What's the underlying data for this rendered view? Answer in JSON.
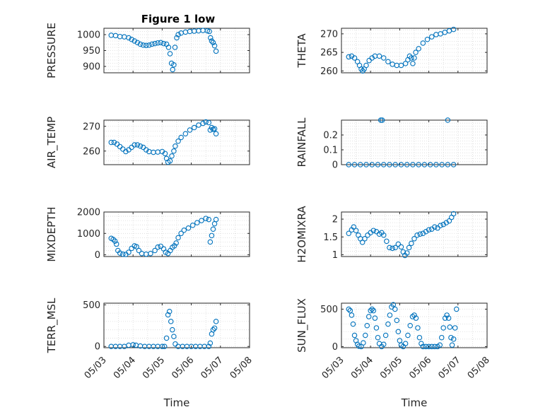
{
  "figure": {
    "title": "Figure 1 low",
    "marker_color": "#0072BD",
    "axis_color": "#262626",
    "grid_color": "#d9d9d9"
  },
  "chart_data": [
    {
      "type": "scatter",
      "ylabel": "PRESSURE",
      "xlim": [
        0,
        5
      ],
      "ylim": [
        880,
        1020
      ],
      "yticks": [
        900,
        950,
        1000
      ],
      "ytick_labels": [
        "900",
        "950",
        "1000"
      ],
      "xticks": [
        0,
        1,
        2,
        3,
        4,
        5
      ],
      "xtick_labels": [],
      "grid": true,
      "points": [
        [
          0.25,
          998
        ],
        [
          0.4,
          997
        ],
        [
          0.55,
          994
        ],
        [
          0.7,
          993
        ],
        [
          0.85,
          990
        ],
        [
          0.95,
          985
        ],
        [
          1.05,
          980
        ],
        [
          1.15,
          975
        ],
        [
          1.25,
          970
        ],
        [
          1.35,
          967
        ],
        [
          1.45,
          966
        ],
        [
          1.55,
          967
        ],
        [
          1.65,
          970
        ],
        [
          1.75,
          972
        ],
        [
          1.85,
          974
        ],
        [
          1.95,
          975
        ],
        [
          2.05,
          972
        ],
        [
          2.15,
          970
        ],
        [
          2.22,
          960
        ],
        [
          2.27,
          940
        ],
        [
          2.32,
          910
        ],
        [
          2.36,
          890
        ],
        [
          2.4,
          905
        ],
        [
          2.44,
          960
        ],
        [
          2.5,
          990
        ],
        [
          2.55,
          1000
        ],
        [
          2.65,
          1005
        ],
        [
          2.8,
          1008
        ],
        [
          2.95,
          1010
        ],
        [
          3.1,
          1011
        ],
        [
          3.25,
          1012
        ],
        [
          3.4,
          1013
        ],
        [
          3.55,
          1012
        ],
        [
          3.62,
          1010
        ],
        [
          3.66,
          990
        ],
        [
          3.7,
          980
        ],
        [
          3.75,
          975
        ],
        [
          3.8,
          965
        ],
        [
          3.85,
          948
        ]
      ]
    },
    {
      "type": "scatter",
      "ylabel": "THETA",
      "xlim": [
        0,
        5
      ],
      "ylim": [
        259.5,
        271.5
      ],
      "yticks": [
        260,
        265,
        270
      ],
      "ytick_labels": [
        "260",
        "265",
        "270"
      ],
      "xticks": [
        0,
        1,
        2,
        3,
        4,
        5
      ],
      "xtick_labels": [],
      "grid": true,
      "points": [
        [
          0.25,
          263.8
        ],
        [
          0.35,
          264
        ],
        [
          0.45,
          263.5
        ],
        [
          0.55,
          262.5
        ],
        [
          0.62,
          261.5
        ],
        [
          0.68,
          260.5
        ],
        [
          0.73,
          260
        ],
        [
          0.78,
          260.5
        ],
        [
          0.85,
          261.5
        ],
        [
          0.95,
          262.8
        ],
        [
          1.05,
          263.5
        ],
        [
          1.15,
          264
        ],
        [
          1.3,
          264
        ],
        [
          1.45,
          263.5
        ],
        [
          1.6,
          262.5
        ],
        [
          1.75,
          261.8
        ],
        [
          1.9,
          261.5
        ],
        [
          2.05,
          261.5
        ],
        [
          2.2,
          262
        ],
        [
          2.28,
          263
        ],
        [
          2.34,
          264
        ],
        [
          2.4,
          263.5
        ],
        [
          2.45,
          262
        ],
        [
          2.5,
          263.5
        ],
        [
          2.55,
          265
        ],
        [
          2.65,
          266
        ],
        [
          2.8,
          267.5
        ],
        [
          2.95,
          268.5
        ],
        [
          3.1,
          269.2
        ],
        [
          3.25,
          269.8
        ],
        [
          3.4,
          270
        ],
        [
          3.55,
          270.4
        ],
        [
          3.7,
          270.8
        ],
        [
          3.85,
          271.2
        ]
      ]
    },
    {
      "type": "scatter",
      "ylabel": "AIR_TEMP",
      "xlim": [
        0,
        5
      ],
      "ylim": [
        254.5,
        272.5
      ],
      "yticks": [
        260,
        270
      ],
      "ytick_labels": [
        "260",
        "270"
      ],
      "xticks": [
        0,
        1,
        2,
        3,
        4,
        5
      ],
      "xtick_labels": [],
      "grid": true,
      "points": [
        [
          0.25,
          263.5
        ],
        [
          0.35,
          263.5
        ],
        [
          0.45,
          262.8
        ],
        [
          0.55,
          261.8
        ],
        [
          0.65,
          260.8
        ],
        [
          0.75,
          259.8
        ],
        [
          0.85,
          260.5
        ],
        [
          0.95,
          261.5
        ],
        [
          1.05,
          262.5
        ],
        [
          1.15,
          262.5
        ],
        [
          1.25,
          262
        ],
        [
          1.35,
          261.5
        ],
        [
          1.45,
          260.5
        ],
        [
          1.55,
          259.8
        ],
        [
          1.7,
          259.5
        ],
        [
          1.85,
          259.6
        ],
        [
          2.0,
          259.8
        ],
        [
          2.1,
          259
        ],
        [
          2.15,
          257
        ],
        [
          2.2,
          255.5
        ],
        [
          2.27,
          256
        ],
        [
          2.33,
          258
        ],
        [
          2.4,
          260
        ],
        [
          2.45,
          262
        ],
        [
          2.55,
          264
        ],
        [
          2.65,
          265.5
        ],
        [
          2.8,
          267
        ],
        [
          2.95,
          268.5
        ],
        [
          3.1,
          269.5
        ],
        [
          3.25,
          270.5
        ],
        [
          3.4,
          271.2
        ],
        [
          3.5,
          271.8
        ],
        [
          3.6,
          271.5
        ],
        [
          3.65,
          268.5
        ],
        [
          3.7,
          269.5
        ],
        [
          3.75,
          268.8
        ],
        [
          3.8,
          269
        ],
        [
          3.85,
          267
        ]
      ]
    },
    {
      "type": "scatter",
      "ylabel": "RAINFALL",
      "xlim": [
        0,
        5
      ],
      "ylim": [
        0,
        0.3
      ],
      "yticks": [
        0,
        0.1,
        0.2
      ],
      "ytick_labels": [
        "0",
        "0.1",
        "0.2"
      ],
      "xticks": [
        0,
        1,
        2,
        3,
        4,
        5
      ],
      "xtick_labels": [],
      "grid": true,
      "points": [
        [
          0.25,
          0
        ],
        [
          0.45,
          0
        ],
        [
          0.65,
          0
        ],
        [
          0.85,
          0
        ],
        [
          1.05,
          0
        ],
        [
          1.25,
          0
        ],
        [
          1.45,
          0
        ],
        [
          1.65,
          0
        ],
        [
          1.85,
          0
        ],
        [
          2.05,
          0
        ],
        [
          2.25,
          0
        ],
        [
          2.45,
          0
        ],
        [
          2.65,
          0
        ],
        [
          2.85,
          0
        ],
        [
          3.05,
          0
        ],
        [
          3.25,
          0
        ],
        [
          3.45,
          0
        ],
        [
          3.65,
          0
        ],
        [
          3.85,
          0
        ],
        [
          1.35,
          0.3
        ],
        [
          1.4,
          0.3
        ],
        [
          3.65,
          0.3
        ]
      ]
    },
    {
      "type": "scatter",
      "ylabel": "MIXDEPTH",
      "xlim": [
        0,
        5
      ],
      "ylim": [
        -80,
        2000
      ],
      "yticks": [
        0,
        1000,
        2000
      ],
      "ytick_labels": [
        "0",
        "1000",
        "2000"
      ],
      "xticks": [
        0,
        1,
        2,
        3,
        4,
        5
      ],
      "xtick_labels": [],
      "grid": true,
      "points": [
        [
          0.25,
          770
        ],
        [
          0.32,
          720
        ],
        [
          0.38,
          640
        ],
        [
          0.43,
          500
        ],
        [
          0.48,
          200
        ],
        [
          0.55,
          80
        ],
        [
          0.65,
          30
        ],
        [
          0.75,
          20
        ],
        [
          0.85,
          120
        ],
        [
          0.95,
          300
        ],
        [
          1.05,
          420
        ],
        [
          1.12,
          380
        ],
        [
          1.2,
          200
        ],
        [
          1.3,
          60
        ],
        [
          1.45,
          30
        ],
        [
          1.6,
          60
        ],
        [
          1.75,
          200
        ],
        [
          1.85,
          360
        ],
        [
          1.95,
          400
        ],
        [
          2.05,
          280
        ],
        [
          2.12,
          120
        ],
        [
          2.2,
          60
        ],
        [
          2.28,
          200
        ],
        [
          2.35,
          350
        ],
        [
          2.42,
          420
        ],
        [
          2.48,
          550
        ],
        [
          2.55,
          800
        ],
        [
          2.65,
          1000
        ],
        [
          2.75,
          1150
        ],
        [
          2.9,
          1250
        ],
        [
          3.05,
          1380
        ],
        [
          3.2,
          1500
        ],
        [
          3.35,
          1600
        ],
        [
          3.5,
          1700
        ],
        [
          3.6,
          1650
        ],
        [
          3.65,
          600
        ],
        [
          3.7,
          900
        ],
        [
          3.75,
          1200
        ],
        [
          3.8,
          1450
        ],
        [
          3.85,
          1650
        ]
      ]
    },
    {
      "type": "scatter",
      "ylabel": "H2OMIXRA",
      "xlim": [
        0,
        5
      ],
      "ylim": [
        0.95,
        2.2
      ],
      "yticks": [
        1,
        1.5,
        2
      ],
      "ytick_labels": [
        "1",
        "1.5",
        "2"
      ],
      "xticks": [
        0,
        1,
        2,
        3,
        4,
        5
      ],
      "xtick_labels": [],
      "grid": true,
      "points": [
        [
          0.25,
          1.6
        ],
        [
          0.35,
          1.7
        ],
        [
          0.42,
          1.78
        ],
        [
          0.5,
          1.68
        ],
        [
          0.58,
          1.55
        ],
        [
          0.65,
          1.45
        ],
        [
          0.72,
          1.35
        ],
        [
          0.8,
          1.45
        ],
        [
          0.9,
          1.55
        ],
        [
          1.0,
          1.62
        ],
        [
          1.1,
          1.68
        ],
        [
          1.2,
          1.65
        ],
        [
          1.3,
          1.58
        ],
        [
          1.38,
          1.62
        ],
        [
          1.45,
          1.55
        ],
        [
          1.55,
          1.38
        ],
        [
          1.65,
          1.2
        ],
        [
          1.75,
          1.18
        ],
        [
          1.85,
          1.2
        ],
        [
          1.95,
          1.3
        ],
        [
          2.05,
          1.22
        ],
        [
          2.12,
          1.08
        ],
        [
          2.18,
          0.98
        ],
        [
          2.25,
          1.05
        ],
        [
          2.32,
          1.2
        ],
        [
          2.4,
          1.32
        ],
        [
          2.5,
          1.45
        ],
        [
          2.6,
          1.55
        ],
        [
          2.7,
          1.58
        ],
        [
          2.8,
          1.6
        ],
        [
          2.9,
          1.65
        ],
        [
          3.0,
          1.7
        ],
        [
          3.1,
          1.72
        ],
        [
          3.2,
          1.78
        ],
        [
          3.3,
          1.75
        ],
        [
          3.4,
          1.82
        ],
        [
          3.5,
          1.85
        ],
        [
          3.6,
          1.9
        ],
        [
          3.7,
          1.95
        ],
        [
          3.78,
          2.05
        ],
        [
          3.85,
          2.15
        ]
      ]
    },
    {
      "type": "scatter",
      "ylabel": "TERR_MSL",
      "xlim": [
        0,
        5
      ],
      "ylim": [
        -15,
        520
      ],
      "yticks": [
        0,
        500
      ],
      "ytick_labels": [
        "0",
        "500"
      ],
      "xticks": [
        0,
        1,
        2,
        3,
        4,
        5
      ],
      "xtick_labels": [
        "05/03",
        "05/04",
        "05/05",
        "05/06",
        "05/07",
        "05/08"
      ],
      "xlabel": "Time",
      "grid": true,
      "points": [
        [
          0.25,
          0
        ],
        [
          0.4,
          0
        ],
        [
          0.55,
          0
        ],
        [
          0.7,
          0
        ],
        [
          0.85,
          15
        ],
        [
          1.0,
          20
        ],
        [
          1.1,
          15
        ],
        [
          1.25,
          5
        ],
        [
          1.4,
          0
        ],
        [
          1.55,
          0
        ],
        [
          1.7,
          0
        ],
        [
          1.85,
          0
        ],
        [
          2.0,
          0
        ],
        [
          2.08,
          0
        ],
        [
          2.15,
          100
        ],
        [
          2.2,
          380
        ],
        [
          2.25,
          420
        ],
        [
          2.3,
          300
        ],
        [
          2.35,
          200
        ],
        [
          2.4,
          120
        ],
        [
          2.45,
          30
        ],
        [
          2.55,
          0
        ],
        [
          2.7,
          0
        ],
        [
          2.85,
          0
        ],
        [
          3.0,
          0
        ],
        [
          3.15,
          0
        ],
        [
          3.3,
          0
        ],
        [
          3.45,
          0
        ],
        [
          3.6,
          0
        ],
        [
          3.65,
          40
        ],
        [
          3.7,
          150
        ],
        [
          3.75,
          200
        ],
        [
          3.8,
          220
        ],
        [
          3.85,
          300
        ]
      ]
    },
    {
      "type": "scatter",
      "ylabel": "SUN_FLUX",
      "xlim": [
        0,
        5
      ],
      "ylim": [
        -15,
        580
      ],
      "yticks": [
        0,
        500
      ],
      "ytick_labels": [
        "0",
        "500"
      ],
      "xticks": [
        0,
        1,
        2,
        3,
        4,
        5
      ],
      "xtick_labels": [
        "05/03",
        "05/04",
        "05/05",
        "05/06",
        "05/07",
        "05/08"
      ],
      "xlabel": "Time",
      "grid": true,
      "points": [
        [
          0.25,
          500
        ],
        [
          0.3,
          480
        ],
        [
          0.35,
          420
        ],
        [
          0.4,
          300
        ],
        [
          0.45,
          150
        ],
        [
          0.5,
          80
        ],
        [
          0.55,
          30
        ],
        [
          0.6,
          5
        ],
        [
          0.68,
          0
        ],
        [
          0.75,
          50
        ],
        [
          0.82,
          150
        ],
        [
          0.88,
          280
        ],
        [
          0.94,
          400
        ],
        [
          1.0,
          480
        ],
        [
          1.05,
          500
        ],
        [
          1.1,
          480
        ],
        [
          1.15,
          380
        ],
        [
          1.2,
          250
        ],
        [
          1.25,
          120
        ],
        [
          1.3,
          40
        ],
        [
          1.38,
          0
        ],
        [
          1.45,
          30
        ],
        [
          1.52,
          150
        ],
        [
          1.6,
          300
        ],
        [
          1.66,
          420
        ],
        [
          1.72,
          530
        ],
        [
          1.78,
          560
        ],
        [
          1.84,
          500
        ],
        [
          1.9,
          350
        ],
        [
          1.95,
          200
        ],
        [
          2.0,
          80
        ],
        [
          2.05,
          20
        ],
        [
          2.12,
          0
        ],
        [
          2.2,
          40
        ],
        [
          2.28,
          150
        ],
        [
          2.36,
          280
        ],
        [
          2.44,
          400
        ],
        [
          2.5,
          420
        ],
        [
          2.56,
          380
        ],
        [
          2.62,
          250
        ],
        [
          2.68,
          120
        ],
        [
          2.74,
          40
        ],
        [
          2.8,
          0
        ],
        [
          2.9,
          0
        ],
        [
          3.0,
          0
        ],
        [
          3.1,
          0
        ],
        [
          3.2,
          0
        ],
        [
          3.3,
          0
        ],
        [
          3.38,
          20
        ],
        [
          3.44,
          120
        ],
        [
          3.5,
          250
        ],
        [
          3.56,
          380
        ],
        [
          3.62,
          420
        ],
        [
          3.68,
          380
        ],
        [
          3.72,
          260
        ],
        [
          3.76,
          120
        ],
        [
          3.8,
          20
        ],
        [
          3.85,
          100
        ],
        [
          3.9,
          250
        ],
        [
          3.95,
          500
        ]
      ]
    }
  ]
}
